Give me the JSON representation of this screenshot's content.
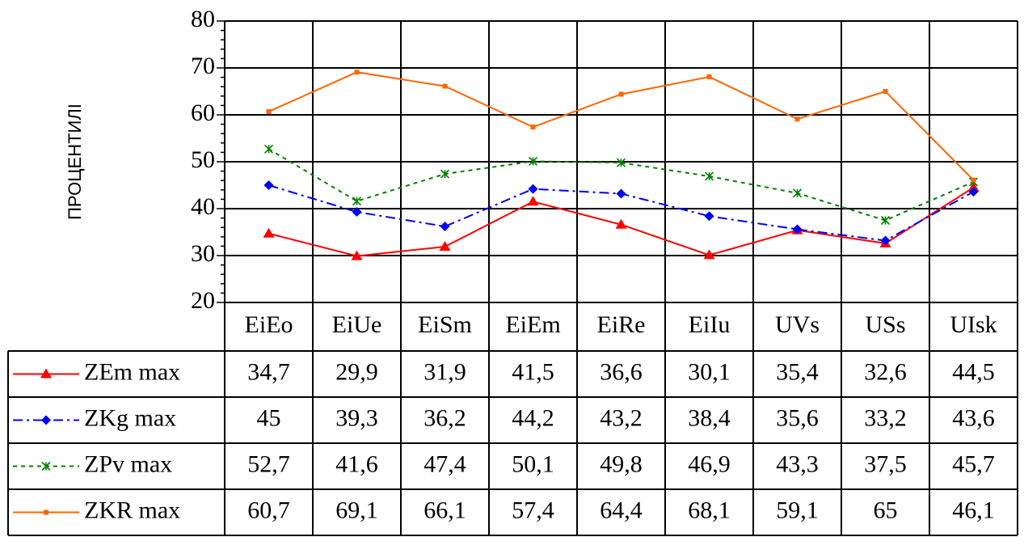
{
  "chart_data": {
    "type": "line",
    "title": "",
    "xlabel": "",
    "ylabel": "ПРОЦЕНТИЛІ",
    "ylim": [
      20,
      80
    ],
    "yticks": [
      20,
      30,
      40,
      50,
      60,
      70,
      80
    ],
    "grid": true,
    "legend": "data-table-left",
    "categories": [
      "EiEo",
      "EiUe",
      "EiSm",
      "EiEm",
      "EiRe",
      "EiIu",
      "UVs",
      "USs",
      "UIsk"
    ],
    "series": [
      {
        "name": "ZEm max",
        "color": "#ff0000",
        "marker": "triangle",
        "dash": "solid",
        "values": [
          34.7,
          29.9,
          31.9,
          41.5,
          36.6,
          30.1,
          35.4,
          32.6,
          44.5
        ],
        "labels": [
          "34,7",
          "29,9",
          "31,9",
          "41,5",
          "36,6",
          "30,1",
          "35,4",
          "32,6",
          "44,5"
        ]
      },
      {
        "name": "ZKg max",
        "color": "#0000ff",
        "marker": "diamond",
        "dash": "dashdot",
        "values": [
          45,
          39.3,
          36.2,
          44.2,
          43.2,
          38.4,
          35.6,
          33.2,
          43.6
        ],
        "labels": [
          "45",
          "39,3",
          "36,2",
          "44,2",
          "43,2",
          "38,4",
          "35,6",
          "33,2",
          "43,6"
        ]
      },
      {
        "name": "ZPv max",
        "color": "#008000",
        "marker": "asterisk",
        "dash": "dotted",
        "values": [
          52.7,
          41.6,
          47.4,
          50.1,
          49.8,
          46.9,
          43.3,
          37.5,
          45.7
        ],
        "labels": [
          "52,7",
          "41,6",
          "47,4",
          "50,1",
          "49,8",
          "46,9",
          "43,3",
          "37,5",
          "45,7"
        ]
      },
      {
        "name": "ZKR max",
        "color": "#ff6600",
        "marker": "square",
        "dash": "solid",
        "values": [
          60.7,
          69.1,
          66.1,
          57.4,
          64.4,
          68.1,
          59.1,
          65,
          46.1
        ],
        "labels": [
          "60,7",
          "69,1",
          "66,1",
          "57,4",
          "64,4",
          "68,1",
          "59,1",
          "65",
          "46,1"
        ]
      }
    ]
  }
}
